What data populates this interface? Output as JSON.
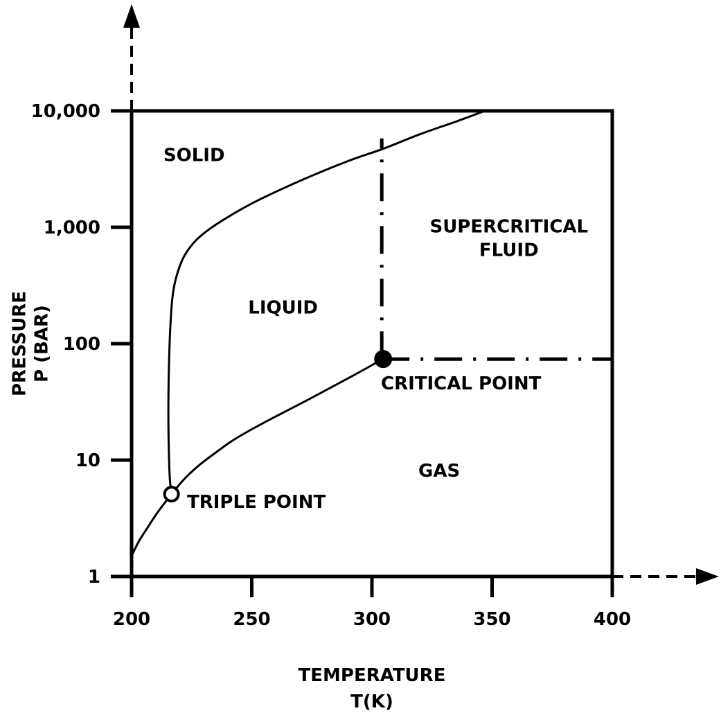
{
  "chart_data": {
    "type": "line",
    "title": "",
    "xlabel": "TEMPERATURE",
    "xlabel_unit": "T(K)",
    "ylabel": "PRESSURE",
    "ylabel_unit": "P (BAR)",
    "xlim": [
      200,
      400
    ],
    "ylim": [
      1,
      10000
    ],
    "yscale": "log",
    "xticks": [
      {
        "value": 200,
        "label": "200"
      },
      {
        "value": 250,
        "label": "250"
      },
      {
        "value": 300,
        "label": "300"
      },
      {
        "value": 350,
        "label": "350"
      },
      {
        "value": 400,
        "label": "400"
      }
    ],
    "yticks": [
      {
        "value": 1,
        "label": "1"
      },
      {
        "value": 10,
        "label": "10"
      },
      {
        "value": 100,
        "label": "100"
      },
      {
        "value": 1000,
        "label": "1,000"
      },
      {
        "value": 10000,
        "label": "10,000"
      }
    ],
    "grid": false,
    "series": [
      {
        "id": "sublimation",
        "style": "solid",
        "points": [
          [
            200,
            1.5
          ],
          [
            203,
            2.0
          ],
          [
            207,
            2.7
          ],
          [
            211,
            3.6
          ],
          [
            216.6,
            5.1
          ]
        ]
      },
      {
        "id": "vaporization",
        "style": "solid",
        "points": [
          [
            216.6,
            5.1
          ],
          [
            222,
            6.9
          ],
          [
            228,
            9.0
          ],
          [
            235,
            11.6
          ],
          [
            242,
            14.7
          ],
          [
            250,
            18.4
          ],
          [
            260,
            23.7
          ],
          [
            270,
            30.3
          ],
          [
            280,
            39.0
          ],
          [
            290,
            50.3
          ],
          [
            300,
            65.4
          ],
          [
            304.1,
            73.8
          ]
        ]
      },
      {
        "id": "melting",
        "style": "solid",
        "points": [
          [
            216.6,
            5.1
          ],
          [
            215.9,
            7.0
          ],
          [
            215.5,
            12.0
          ],
          [
            215.3,
            25.0
          ],
          [
            215.5,
            60.0
          ],
          [
            216.2,
            150.0
          ],
          [
            217.2,
            270.0
          ],
          [
            219.0,
            400.0
          ],
          [
            222.0,
            570.0
          ],
          [
            227.0,
            780.0
          ],
          [
            235.0,
            1050.0
          ],
          [
            250.0,
            1600.0
          ],
          [
            270.0,
            2500.0
          ],
          [
            290.0,
            3700.0
          ],
          [
            305.0,
            4750.0
          ],
          [
            320.0,
            6300.0
          ],
          [
            335.0,
            8100.0
          ],
          [
            347.0,
            10000.0
          ]
        ]
      }
    ],
    "boundaries": [
      {
        "id": "critical-temperature-line",
        "style": "dash-dot",
        "points": [
          [
            304.1,
            73.8
          ],
          [
            304.1,
            5800
          ]
        ]
      },
      {
        "id": "critical-pressure-line",
        "style": "dash-dot",
        "points": [
          [
            304.1,
            73.8
          ],
          [
            400,
            73.8
          ]
        ]
      }
    ],
    "points": [
      {
        "id": "triple-point",
        "label": "TRIPLE POINT",
        "x": 216.6,
        "y": 5.1,
        "marker": "open-circle"
      },
      {
        "id": "critical-point",
        "label": "CRITICAL POINT",
        "x": 304.1,
        "y": 73.8,
        "marker": "filled-circle"
      }
    ],
    "regions": [
      {
        "id": "solid",
        "lines": [
          "SOLID"
        ],
        "x": 226,
        "y": 3700
      },
      {
        "id": "liquid",
        "lines": [
          "LIQUID"
        ],
        "x": 263,
        "y": 182
      },
      {
        "id": "supercritical-fluid",
        "lines": [
          "SUPERCRITICAL",
          "FLUID"
        ],
        "x": 357,
        "y": 900
      },
      {
        "id": "gas",
        "lines": [
          "GAS"
        ],
        "x": 328,
        "y": 7.2
      }
    ]
  }
}
